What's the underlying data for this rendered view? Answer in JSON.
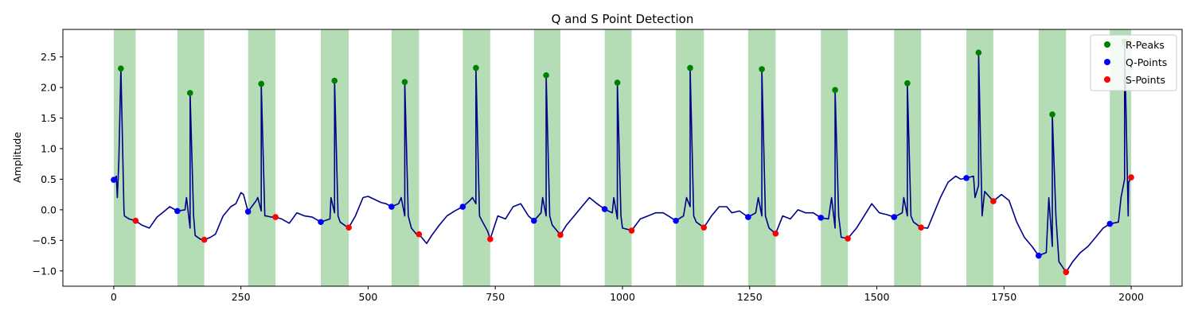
{
  "chart_data": {
    "type": "line",
    "title": "Q and S Point Detection",
    "xlabel": "",
    "ylabel": "Amplitude",
    "xlim": [
      -100,
      2100
    ],
    "ylim": [
      -1.25,
      2.95
    ],
    "xticks": [
      0,
      250,
      500,
      750,
      1000,
      1250,
      1500,
      1750,
      2000
    ],
    "yticks": [
      -1.0,
      -0.5,
      0.0,
      0.5,
      1.0,
      1.5,
      2.0,
      2.5
    ],
    "grid": false,
    "legend_position": "top-right",
    "colors": {
      "signal": "#00008b",
      "r_peaks": "#008000",
      "q_points": "#0000ff",
      "s_points": "#ff0000",
      "qrs_band": "#4caf50"
    },
    "qrs_regions": [
      [
        0,
        43
      ],
      [
        125,
        178
      ],
      [
        264,
        318
      ],
      [
        407,
        462
      ],
      [
        546,
        600
      ],
      [
        686,
        740
      ],
      [
        826,
        878
      ],
      [
        965,
        1018
      ],
      [
        1105,
        1160
      ],
      [
        1247,
        1301
      ],
      [
        1390,
        1443
      ],
      [
        1534,
        1587
      ],
      [
        1676,
        1729
      ],
      [
        1818,
        1872
      ],
      [
        1958,
        2000
      ]
    ],
    "series": [
      {
        "name": "R-Peaks",
        "x": [
          14,
          150,
          290,
          434,
          572,
          712,
          850,
          990,
          1133,
          1274,
          1418,
          1560,
          1700,
          1845,
          1987
        ],
        "y": [
          2.31,
          1.91,
          2.06,
          2.11,
          2.09,
          2.32,
          2.2,
          2.08,
          2.32,
          2.3,
          1.96,
          2.07,
          2.57,
          1.56,
          2.75
        ]
      },
      {
        "name": "Q-Points",
        "x": [
          0,
          125,
          264,
          407,
          546,
          686,
          826,
          965,
          1105,
          1247,
          1390,
          1534,
          1676,
          1818,
          1958
        ],
        "y": [
          0.49,
          -0.02,
          -0.03,
          -0.2,
          0.05,
          0.05,
          -0.18,
          0.01,
          -0.18,
          -0.12,
          -0.13,
          -0.12,
          0.52,
          -0.75,
          -0.23
        ]
      },
      {
        "name": "S-Points",
        "x": [
          43,
          178,
          318,
          462,
          600,
          740,
          878,
          1018,
          1160,
          1301,
          1443,
          1587,
          1729,
          1872,
          2000
        ],
        "y": [
          -0.18,
          -0.49,
          -0.12,
          -0.29,
          -0.4,
          -0.48,
          -0.41,
          -0.34,
          -0.29,
          -0.39,
          -0.47,
          -0.29,
          0.14,
          -1.02,
          0.53
        ]
      }
    ],
    "signal_baseline": {
      "x": [
        0,
        5,
        10,
        20,
        30,
        43,
        55,
        70,
        85,
        100,
        110,
        125,
        140,
        150,
        160,
        170,
        178,
        190,
        200,
        215,
        230,
        240,
        250,
        255,
        264,
        280,
        290,
        300,
        310,
        318,
        330,
        345,
        360,
        375,
        390,
        407,
        425,
        434,
        445,
        455,
        462,
        475,
        490,
        500,
        510,
        525,
        535,
        546,
        560,
        572,
        585,
        595,
        600,
        615,
        625,
        640,
        655,
        670,
        686,
        700,
        712,
        725,
        735,
        740,
        755,
        770,
        785,
        800,
        815,
        826,
        840,
        850,
        862,
        878,
        890,
        905,
        920,
        935,
        950,
        965,
        980,
        990,
        1000,
        1010,
        1018,
        1035,
        1050,
        1065,
        1080,
        1090,
        1105,
        1120,
        1133,
        1145,
        1160,
        1175,
        1190,
        1205,
        1215,
        1230,
        1247,
        1262,
        1274,
        1288,
        1301,
        1315,
        1330,
        1345,
        1360,
        1375,
        1390,
        1405,
        1418,
        1430,
        1443,
        1460,
        1475,
        1490,
        1505,
        1520,
        1534,
        1550,
        1560,
        1572,
        1587,
        1600,
        1615,
        1625,
        1640,
        1655,
        1665,
        1676,
        1690,
        1700,
        1712,
        1729,
        1745,
        1760,
        1775,
        1790,
        1805,
        1818,
        1833,
        1845,
        1858,
        1872,
        1885,
        1900,
        1915,
        1930,
        1945,
        1958,
        1975,
        1987,
        1995,
        2000
      ],
      "y": [
        0.49,
        0.55,
        0.8,
        0.0,
        -0.15,
        -0.18,
        -0.25,
        -0.3,
        -0.12,
        -0.02,
        0.05,
        -0.02,
        0.0,
        -0.3,
        -0.42,
        -0.48,
        -0.49,
        -0.45,
        -0.4,
        -0.1,
        0.05,
        0.1,
        0.28,
        0.25,
        -0.03,
        0.15,
        -0.02,
        -0.1,
        -0.12,
        -0.12,
        -0.15,
        -0.22,
        -0.05,
        -0.1,
        -0.12,
        -0.2,
        -0.15,
        -0.05,
        -0.2,
        -0.26,
        -0.29,
        -0.1,
        0.2,
        0.22,
        0.18,
        0.12,
        0.1,
        0.05,
        0.1,
        -0.1,
        -0.3,
        -0.4,
        -0.4,
        -0.55,
        -0.42,
        -0.25,
        -0.1,
        -0.02,
        0.05,
        0.15,
        0.1,
        -0.2,
        -0.35,
        -0.48,
        -0.1,
        -0.15,
        0.05,
        0.1,
        -0.1,
        -0.18,
        -0.05,
        -0.1,
        -0.25,
        -0.41,
        -0.25,
        -0.1,
        0.05,
        0.2,
        0.1,
        0.01,
        -0.05,
        -0.15,
        -0.3,
        -0.32,
        -0.34,
        -0.15,
        -0.1,
        -0.05,
        -0.05,
        -0.1,
        -0.18,
        -0.1,
        0.05,
        -0.2,
        -0.29,
        -0.1,
        0.05,
        0.05,
        -0.05,
        -0.02,
        -0.12,
        -0.05,
        -0.1,
        -0.3,
        -0.39,
        -0.1,
        -0.15,
        0.0,
        -0.05,
        -0.05,
        -0.13,
        -0.15,
        -0.3,
        -0.45,
        -0.47,
        -0.3,
        -0.1,
        0.1,
        -0.05,
        -0.08,
        -0.12,
        -0.05,
        -0.1,
        -0.2,
        -0.29,
        -0.3,
        0.0,
        0.2,
        0.45,
        0.55,
        0.5,
        0.52,
        0.55,
        0.4,
        0.3,
        0.14,
        0.25,
        0.15,
        -0.2,
        -0.45,
        -0.6,
        -0.75,
        -0.7,
        -0.6,
        -0.85,
        -1.02,
        -0.85,
        -0.7,
        -0.6,
        -0.45,
        -0.3,
        -0.23,
        -0.2,
        0.5,
        0.45,
        0.53
      ]
    }
  },
  "legend": {
    "items": [
      {
        "label": "R-Peaks",
        "color": "#008000"
      },
      {
        "label": "Q-Points",
        "color": "#0000ff"
      },
      {
        "label": "S-Points",
        "color": "#ff0000"
      }
    ]
  }
}
